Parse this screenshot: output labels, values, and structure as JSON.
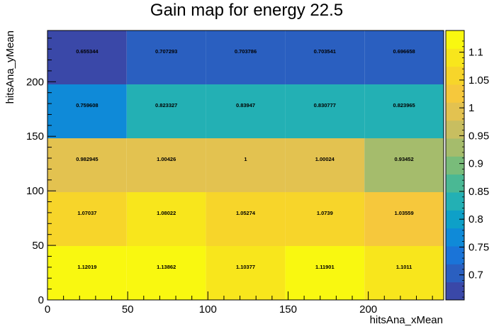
{
  "chart_data": {
    "type": "heatmap",
    "title": "Gain map for energy 22.5",
    "xlabel": "hitsAna_xMean",
    "ylabel": "hitsAna_yMean",
    "xlim": [
      0,
      247
    ],
    "ylim": [
      0,
      247
    ],
    "x_edges": [
      0,
      49.4,
      98.8,
      148.2,
      197.6,
      247
    ],
    "y_edges": [
      0,
      49.4,
      98.8,
      148.2,
      197.6,
      247
    ],
    "x_ticks": [
      0,
      50,
      100,
      150,
      200
    ],
    "y_ticks": [
      0,
      50,
      100,
      150,
      200
    ],
    "x_tick_labels": [
      "0",
      "50",
      "100",
      "150",
      "200"
    ],
    "y_tick_labels": [
      "0",
      "50",
      "100",
      "150",
      "200"
    ],
    "z_min": 0.655,
    "z_max": 1.139,
    "palette_ticks": [
      0.7,
      0.75,
      0.8,
      0.85,
      0.9,
      0.95,
      1,
      1.05,
      1.1
    ],
    "palette_tick_labels": [
      "0.7",
      "0.75",
      "0.8",
      "0.85",
      "0.9",
      "0.95",
      "1",
      "1.05",
      "1.1"
    ],
    "palette_colors": [
      "#3a48a8",
      "#2a5fc0",
      "#1a74d8",
      "#0f8ad8",
      "#0ea0c8",
      "#23b0b4",
      "#4ab894",
      "#79bc7a",
      "#a5bc6c",
      "#c8be60",
      "#e3c250",
      "#f6c83c",
      "#f7d52a",
      "#f8e61c",
      "#f9f810"
    ],
    "rows": [
      {
        "y": "0-49.4",
        "values": [
          1.12019,
          1.13862,
          1.10377,
          1.11901,
          1.1011
        ],
        "labels": [
          "1.12019",
          "1.13862",
          "1.10377",
          "1.11901",
          "1.1011"
        ]
      },
      {
        "y": "49.4-98.8",
        "values": [
          1.07037,
          1.08022,
          1.05274,
          1.0739,
          1.03559
        ],
        "labels": [
          "1.07037",
          "1.08022",
          "1.05274",
          "1.0739",
          "1.03559"
        ]
      },
      {
        "y": "98.8-148.2",
        "values": [
          0.982945,
          1.00426,
          1,
          1.00024,
          0.93452
        ],
        "labels": [
          "0.982945",
          "1.00426",
          "1",
          "1.00024",
          "0.93452"
        ]
      },
      {
        "y": "148.2-197.6",
        "values": [
          0.759608,
          0.823327,
          0.83947,
          0.830777,
          0.823965
        ],
        "labels": [
          "0.759608",
          "0.823327",
          "0.83947",
          "0.830777",
          "0.823965"
        ]
      },
      {
        "y": "197.6-247",
        "values": [
          0.655344,
          0.707293,
          0.703786,
          0.703541,
          0.696658
        ],
        "labels": [
          "0.655344",
          "0.707293",
          "0.703786",
          "0.703541",
          "0.696658"
        ]
      }
    ]
  }
}
